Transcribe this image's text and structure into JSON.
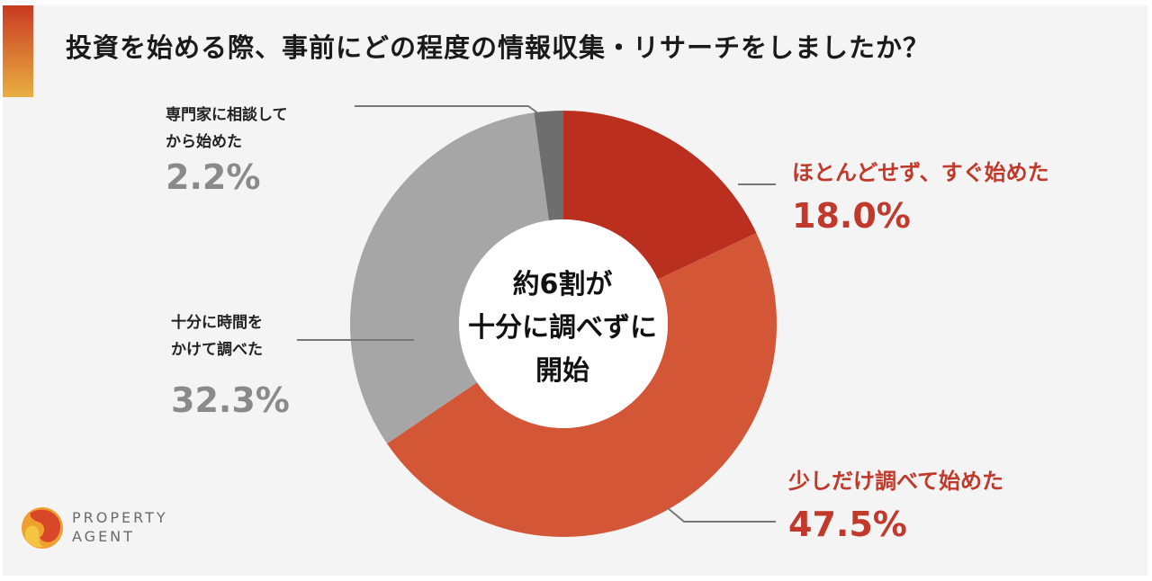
{
  "title": "投資を始める際、事前にどの程度の情報収集・リサーチをしましたか？",
  "chart_data": {
    "type": "donut",
    "title": "投資を始める際、事前にどの程度の情報収集・リサーチをしましたか？",
    "center_text": [
      "約6割が",
      "十分に調べずに",
      "開始"
    ],
    "slices": [
      {
        "label": "ほとんどせず、すぐ始めた",
        "value": 18.0,
        "display": "18.0%",
        "color": "#bb2f1f"
      },
      {
        "label": "少しだけ調べて始めた",
        "value": 47.5,
        "display": "47.5%",
        "color": "#d35637"
      },
      {
        "label": "十分に時間をかけて調べた",
        "label_lines": [
          "十分に時間を",
          "かけて調べた"
        ],
        "value": 32.3,
        "display": "32.3%",
        "color": "#a6a6a6"
      },
      {
        "label": "専門家に相談してから始めた",
        "label_lines": [
          "専門家に相談して",
          "から始めた"
        ],
        "value": 2.2,
        "display": "2.2%",
        "color": "#6e6e6e"
      }
    ]
  },
  "logo": {
    "line1": "PROPERTY",
    "line2": "AGENT"
  },
  "colors": {
    "accent_red": "#c0392b",
    "gray_text": "#8a8a8a",
    "background": "#f4f4f4"
  }
}
